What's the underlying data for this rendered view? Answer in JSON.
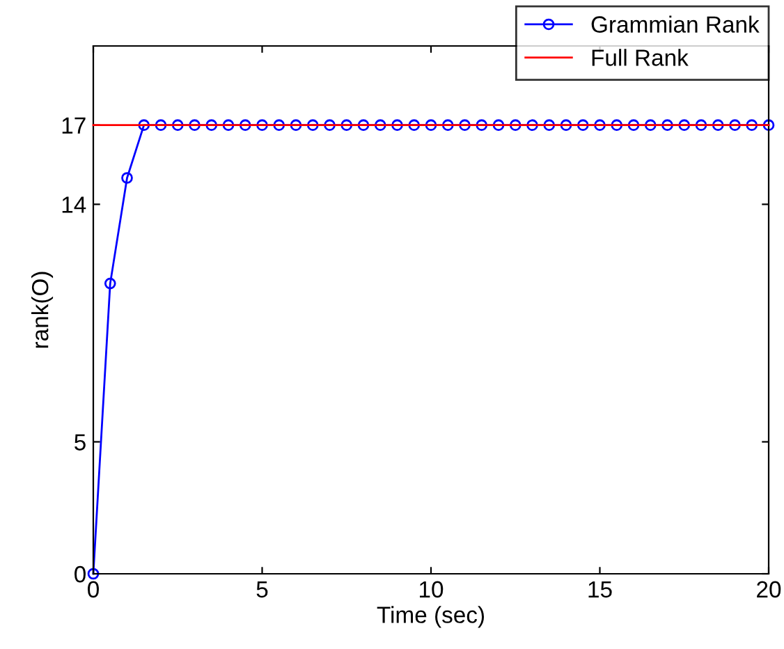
{
  "chart_data": {
    "type": "line",
    "xlabel": "Time (sec)",
    "ylabel": "rank(O)",
    "xlim": [
      0,
      20
    ],
    "xticks": [
      0,
      5,
      10,
      15,
      20
    ],
    "ylim": [
      0,
      20
    ],
    "yticks": [
      0,
      5,
      14,
      17
    ],
    "grid": false,
    "legend": "top right",
    "series": [
      {
        "name": "Grammian Rank",
        "color": "#0000ff",
        "marker": "circle",
        "x": [
          0,
          0.5,
          1,
          1.5,
          2,
          2.5,
          3,
          3.5,
          4,
          4.5,
          5,
          5.5,
          6,
          6.5,
          7,
          7.5,
          8,
          8.5,
          9,
          9.5,
          10,
          10.5,
          11,
          11.5,
          12,
          12.5,
          13,
          13.5,
          14,
          14.5,
          15,
          15.5,
          16,
          16.5,
          17,
          17.5,
          18,
          18.5,
          19,
          19.5,
          20
        ],
        "values": [
          0,
          11,
          15,
          17,
          17,
          17,
          17,
          17,
          17,
          17,
          17,
          17,
          17,
          17,
          17,
          17,
          17,
          17,
          17,
          17,
          17,
          17,
          17,
          17,
          17,
          17,
          17,
          17,
          17,
          17,
          17,
          17,
          17,
          17,
          17,
          17,
          17,
          17,
          17,
          17,
          17
        ]
      },
      {
        "name": "Full Rank",
        "color": "#ff0000",
        "marker": "none",
        "x": [
          0,
          20
        ],
        "values": [
          17,
          17
        ]
      }
    ]
  }
}
